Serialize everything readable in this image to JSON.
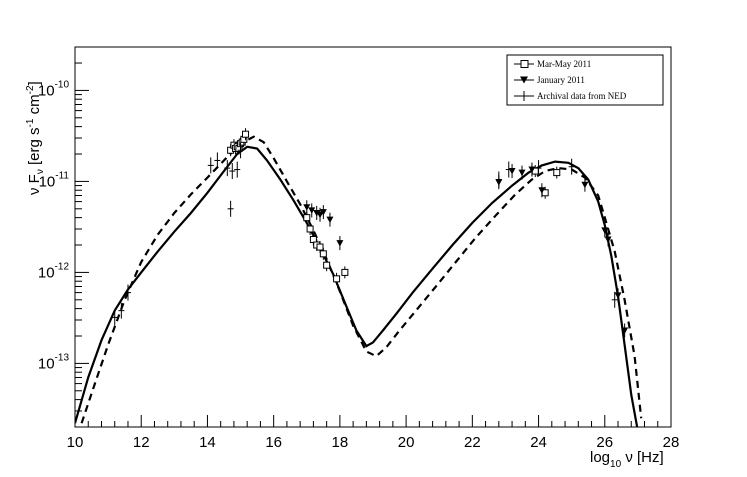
{
  "chart_data": {
    "type": "scatter",
    "xlabel": "log",
    "xlabel_sub": "10",
    "xlabel_rest": " ν [Hz]",
    "ylabel_parts": [
      "ν F",
      "ν",
      " [erg s",
      "-1",
      " cm",
      "-2",
      "]"
    ],
    "xlim": [
      10,
      28
    ],
    "ylim": [
      2e-14,
      3e-10
    ],
    "yscale": "log",
    "x_ticks": [
      10,
      12,
      14,
      16,
      18,
      20,
      22,
      24,
      26,
      28
    ],
    "x_tick_labels": [
      "10",
      "12",
      "14",
      "16",
      "18",
      "20",
      "22",
      "24",
      "26",
      "28"
    ],
    "y_ticks": [
      1e-13,
      1e-12,
      1e-11,
      1e-10
    ],
    "y_tick_labels": [
      {
        "base": "10",
        "exp": "-13"
      },
      {
        "base": "10",
        "exp": "-12"
      },
      {
        "base": "10",
        "exp": "-11"
      },
      {
        "base": "10",
        "exp": "-10"
      }
    ],
    "grid": false,
    "legend": {
      "placement": "top-right",
      "entries": [
        "Mar-May 2011",
        "January 2011",
        "Archival data from NED"
      ]
    },
    "series": [
      {
        "name": "Mar-May 2011",
        "marker": "open-square",
        "x": [
          14.7,
          14.8,
          14.85,
          14.9,
          14.95,
          15.0,
          15.05,
          15.1,
          15.15,
          17.0,
          17.1,
          17.2,
          17.3,
          17.4,
          17.5,
          17.6,
          17.9,
          18.15,
          23.9,
          24.2,
          24.55
        ],
        "y": [
          2.2e-11,
          2.5e-11,
          2.3e-11,
          2.4e-11,
          2.3e-11,
          2.6e-11,
          2.7e-11,
          2.9e-11,
          3.3e-11,
          4e-12,
          3e-12,
          2.3e-12,
          2e-12,
          1.9e-12,
          1.6e-12,
          1.2e-12,
          8.5e-13,
          1e-12,
          1.3e-11,
          7.5e-12,
          1.25e-11
        ]
      },
      {
        "name": "January 2011",
        "marker": "filled-triangle-down",
        "x": [
          17.0,
          17.15,
          17.3,
          17.4,
          17.5,
          17.7,
          18.0,
          22.8,
          23.2,
          23.5,
          23.8,
          24.1,
          25.4,
          26.0,
          26.1,
          26.4,
          26.6
        ],
        "y": [
          5.2e-12,
          4.8e-12,
          4.5e-12,
          4.3e-12,
          4.6e-12,
          3.8e-12,
          2.1e-12,
          9.8e-12,
          1.3e-11,
          1.25e-11,
          1.35e-11,
          8e-12,
          9.2e-12,
          2.9e-12,
          2.3e-12,
          5.6e-13,
          2.3e-13
        ]
      },
      {
        "name": "Archival data from NED",
        "marker": "cross",
        "x": [
          11.2,
          11.4,
          11.6,
          14.1,
          14.3,
          14.6,
          14.75,
          14.9,
          14.7,
          15.0,
          22.8,
          23.1,
          24.0,
          25.0,
          26.3
        ],
        "y": [
          3.2e-13,
          3.8e-13,
          6e-13,
          1.5e-11,
          1.7e-11,
          1.4e-11,
          1.3e-11,
          1.35e-11,
          5e-12,
          2.2e-11,
          1.05e-11,
          1.35e-11,
          1.4e-11,
          1.45e-11,
          5e-13
        ]
      },
      {
        "name": "",
        "style": "solid-line",
        "x": [
          10.0,
          10.4,
          10.8,
          11.2,
          11.6,
          12.0,
          12.5,
          13.0,
          13.5,
          14.0,
          14.5,
          14.9,
          15.2,
          15.5,
          15.8,
          16.2,
          16.6,
          17.0,
          17.4,
          17.8,
          18.2,
          18.5,
          18.8,
          19.0,
          19.3,
          19.7,
          20.2,
          20.8,
          21.4,
          22.0,
          22.6,
          23.2,
          23.7,
          24.1,
          24.5,
          24.9,
          25.2,
          25.5,
          25.8,
          26.0,
          26.2,
          26.4,
          26.6,
          26.8,
          27.0
        ],
        "y": [
          2.2e-14,
          7e-14,
          1.8e-13,
          3.8e-13,
          6.5e-13,
          1e-12,
          1.7e-12,
          2.8e-12,
          4.5e-12,
          7.5e-12,
          1.3e-11,
          2e-11,
          2.4e-11,
          2.3e-11,
          1.7e-11,
          1.05e-11,
          6.2e-12,
          3.5e-12,
          1.85e-12,
          9.5e-13,
          4.2e-13,
          2.3e-13,
          1.55e-13,
          1.7e-13,
          2.3e-13,
          3.5e-13,
          6e-13,
          1.1e-12,
          2e-12,
          3.5e-12,
          5.8e-12,
          9e-12,
          1.25e-11,
          1.5e-11,
          1.65e-11,
          1.6e-11,
          1.4e-11,
          1.05e-11,
          6e-12,
          3.3e-12,
          1.5e-12,
          5.5e-13,
          1.6e-13,
          4.5e-14,
          1.8e-14
        ]
      },
      {
        "name": "",
        "style": "dashed-line",
        "x": [
          10.2,
          10.6,
          11.0,
          11.5,
          12.0,
          12.5,
          13.0,
          13.5,
          14.0,
          14.5,
          15.0,
          15.4,
          15.7,
          16.0,
          16.4,
          16.8,
          17.2,
          17.6,
          18.0,
          18.4,
          18.8,
          19.1,
          19.4,
          19.8,
          20.3,
          20.9,
          21.5,
          22.1,
          22.7,
          23.3,
          23.8,
          24.2,
          24.6,
          25.0,
          25.4,
          25.8,
          26.0,
          26.3,
          26.6,
          26.9,
          27.1
        ],
        "y": [
          2.2e-14,
          6e-14,
          1.6e-13,
          5e-13,
          1.3e-12,
          2.6e-12,
          4.5e-12,
          7.2e-12,
          1.1e-11,
          1.7e-11,
          2.6e-11,
          3.1e-11,
          2.7e-11,
          1.8e-11,
          1e-11,
          5.6e-12,
          2.9e-12,
          1.4e-12,
          6.2e-13,
          2.6e-13,
          1.35e-13,
          1.2e-13,
          1.5e-13,
          2.3e-13,
          3.8e-13,
          7e-13,
          1.3e-12,
          2.4e-12,
          4.2e-12,
          7.2e-12,
          1.05e-11,
          1.3e-11,
          1.4e-11,
          1.35e-11,
          1.1e-11,
          7e-12,
          4e-12,
          1.7e-12,
          5e-13,
          1.2e-13,
          2.5e-14
        ]
      }
    ]
  }
}
